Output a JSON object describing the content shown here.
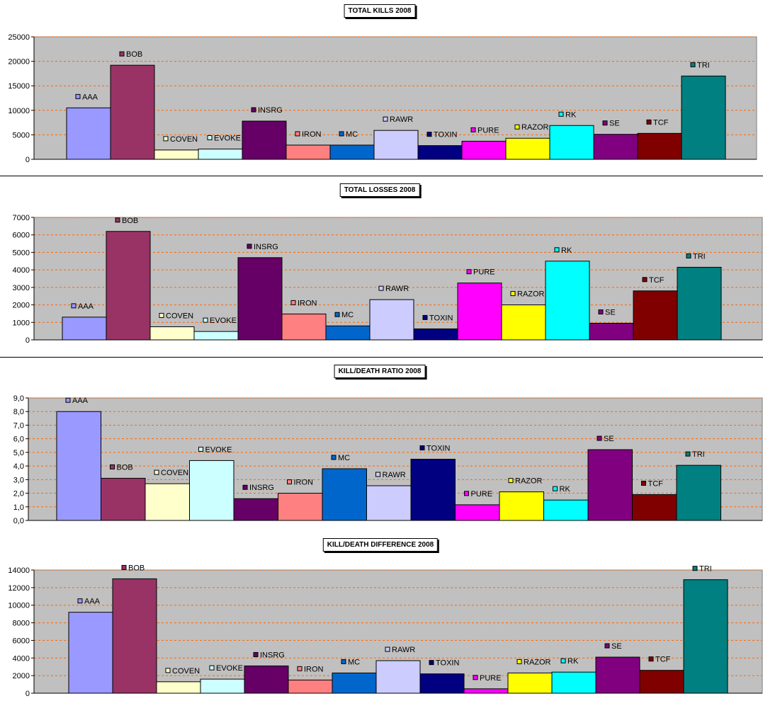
{
  "chart_data": [
    {
      "type": "bar",
      "title": "TOTAL KILLS 2008",
      "categories": [
        "AAA",
        "BOB",
        "COVEN",
        "EVOKE",
        "INSRG",
        "IRON",
        "MC",
        "RAWR",
        "TOXIN",
        "PURE",
        "RAZOR",
        "RK",
        "SE",
        "TCF",
        "TRI"
      ],
      "values": [
        10500,
        19200,
        1900,
        2100,
        7800,
        2900,
        2900,
        5900,
        2800,
        3700,
        4300,
        6900,
        5100,
        5300,
        17000
      ],
      "ylim": [
        0,
        25000
      ],
      "yticks": [
        "0",
        "5000",
        "10000",
        "15000",
        "20000",
        "25000"
      ],
      "xlabel": "",
      "ylabel": ""
    },
    {
      "type": "bar",
      "title": "TOTAL LOSSES 2008",
      "categories": [
        "AAA",
        "BOB",
        "COVEN",
        "EVOKE",
        "INSRG",
        "IRON",
        "MC",
        "RAWR",
        "TOXIN",
        "PURE",
        "RAZOR",
        "RK",
        "SE",
        "TCF",
        "TRI"
      ],
      "values": [
        1300,
        6200,
        750,
        480,
        4700,
        1480,
        800,
        2300,
        630,
        3250,
        2000,
        4500,
        950,
        2800,
        4150
      ],
      "ylim": [
        0,
        7000
      ],
      "yticks": [
        "0",
        "1000",
        "2000",
        "3000",
        "4000",
        "5000",
        "6000",
        "7000"
      ],
      "xlabel": "",
      "ylabel": ""
    },
    {
      "type": "bar",
      "title": "KILL/DEATH RATIO 2008",
      "categories": [
        "AAA",
        "BOB",
        "COVEN",
        "EVOKE",
        "INSRG",
        "IRON",
        "MC",
        "RAWR",
        "TOXIN",
        "PURE",
        "RAZOR",
        "RK",
        "SE",
        "TCF",
        "TRI"
      ],
      "values": [
        8.0,
        3.1,
        2.7,
        4.4,
        1.6,
        2.0,
        3.8,
        2.55,
        4.5,
        1.15,
        2.1,
        1.5,
        5.2,
        1.9,
        4.05
      ],
      "ylim": [
        0,
        9
      ],
      "yticks": [
        "0,0",
        "1,0",
        "2,0",
        "3,0",
        "4,0",
        "5,0",
        "6,0",
        "7,0",
        "8,0",
        "9,0"
      ],
      "xlabel": "",
      "ylabel": ""
    },
    {
      "type": "bar",
      "title": "KILL/DEATH DIFFERENCE 2008",
      "categories": [
        "AAA",
        "BOB",
        "COVEN",
        "EVOKE",
        "INSRG",
        "IRON",
        "MC",
        "RAWR",
        "TOXIN",
        "PURE",
        "RAZOR",
        "RK",
        "SE",
        "TCF",
        "TRI"
      ],
      "values": [
        9200,
        13000,
        1300,
        1600,
        3100,
        1500,
        2300,
        3700,
        2200,
        500,
        2300,
        2400,
        4100,
        2600,
        12900
      ],
      "ylim": [
        0,
        14000
      ],
      "yticks": [
        "0",
        "2000",
        "4000",
        "6000",
        "8000",
        "10000",
        "12000",
        "14000"
      ],
      "xlabel": "",
      "ylabel": ""
    }
  ],
  "colors": {
    "AAA": "#9999ff",
    "BOB": "#993366",
    "COVEN": "#ffffcc",
    "EVOKE": "#ccffff",
    "INSRG": "#660066",
    "IRON": "#ff8080",
    "MC": "#0066cc",
    "RAWR": "#ccccff",
    "TOXIN": "#000080",
    "PURE": "#ff00ff",
    "RAZOR": "#ffff00",
    "RK": "#00ffff",
    "SE": "#800080",
    "TCF": "#800000",
    "TRI": "#008080",
    "plot_bg": "#c0c0c0",
    "gridline": "#ff6600"
  }
}
